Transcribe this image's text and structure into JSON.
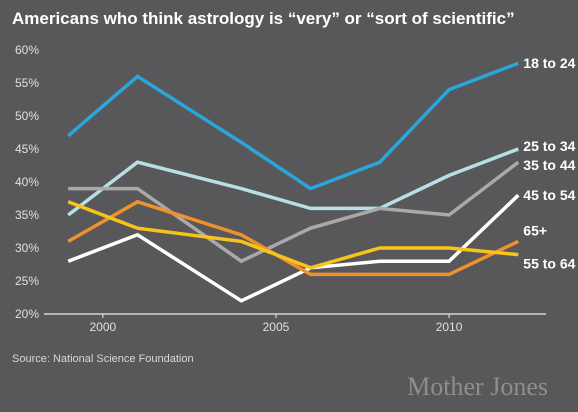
{
  "chart_data": {
    "type": "line",
    "title": "Americans who think astrology is “very” or “sort of scientific”",
    "x": [
      1999,
      2001,
      2004,
      2006,
      2008,
      2010,
      2012
    ],
    "xticks": [
      2000,
      2005,
      2010
    ],
    "xlim": [
      1998.3,
      2012.8
    ],
    "ylim": [
      20,
      60
    ],
    "yticks": [
      20,
      25,
      30,
      35,
      40,
      45,
      50,
      55,
      60
    ],
    "ytick_format": "%",
    "grid": false,
    "series": [
      {
        "name": "18 to 24",
        "color": "#2aa6dc",
        "values": [
          47,
          56,
          46,
          39,
          43,
          54,
          58
        ]
      },
      {
        "name": "25 to 34",
        "color": "#b7dfe6",
        "values": [
          35,
          43,
          39,
          36,
          36,
          41,
          45
        ]
      },
      {
        "name": "35 to 44",
        "color": "#a9a9ab",
        "values": [
          39,
          39,
          28,
          33,
          36,
          35,
          43
        ]
      },
      {
        "name": "45 to 54",
        "color": "#ffffff",
        "values": [
          28,
          32,
          22,
          27,
          28,
          28,
          38
        ]
      },
      {
        "name": "65+",
        "color": "#f0912c",
        "values": [
          31,
          37,
          32,
          26,
          26,
          26,
          31
        ]
      },
      {
        "name": "55 to 64",
        "color": "#f7c41c",
        "values": [
          37,
          33,
          31,
          27,
          30,
          30,
          29
        ]
      }
    ]
  },
  "footer": {
    "source": "Source: National Science Foundation",
    "brand": "Mother Jones"
  }
}
